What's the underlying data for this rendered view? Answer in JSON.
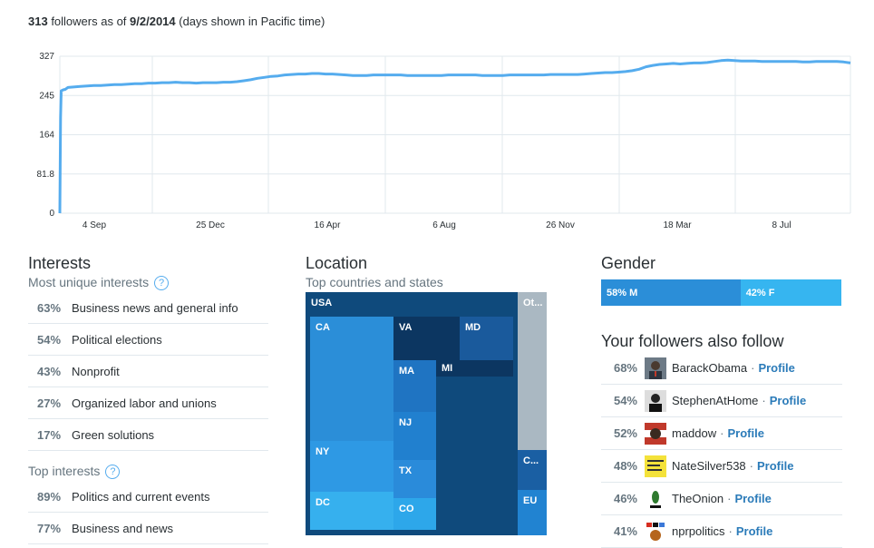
{
  "header": {
    "count": "313",
    "text1": " followers as of ",
    "date": "9/2/2014",
    "text2": " (days shown in Pacific time)"
  },
  "chart_data": {
    "type": "line",
    "y_ticks": [
      "0",
      "81.8",
      "164",
      "245",
      "327"
    ],
    "ylim": [
      0,
      327
    ],
    "x_ticks": [
      "4 Sep",
      "25 Dec",
      "16 Apr",
      "6 Aug",
      "26 Nov",
      "18 Mar",
      "8 Jul"
    ],
    "series": [
      {
        "color": "#55acee",
        "x": [
          0,
          0.5,
          1,
          2,
          5,
          8,
          10,
          12,
          20,
          30,
          40,
          50,
          60,
          70,
          80,
          90,
          100,
          110,
          120,
          130,
          140,
          150,
          160,
          170,
          180,
          190,
          200,
          210,
          220,
          230,
          240,
          250,
          260,
          270,
          280,
          290,
          300,
          310,
          320,
          330,
          340,
          350,
          360,
          370,
          380,
          390,
          400,
          410,
          420,
          430,
          440,
          450,
          460,
          470,
          480,
          490,
          500,
          510,
          520,
          530,
          540,
          550,
          560,
          570,
          580,
          590,
          600,
          610,
          620,
          630,
          640,
          650,
          660,
          670,
          680,
          690,
          700,
          710,
          720,
          730,
          740,
          750,
          760,
          770,
          780,
          790,
          800,
          810,
          820,
          830,
          840,
          850,
          860,
          870,
          880,
          890,
          900,
          910,
          920,
          930,
          940,
          950,
          960,
          970,
          980,
          990,
          1000,
          1010,
          1020,
          1030,
          1040,
          1050,
          1060,
          1070,
          1080,
          1090,
          1100,
          1110,
          1120,
          1130,
          1140,
          1150,
          1160
        ],
        "values": [
          0,
          100,
          200,
          255,
          257,
          258,
          260,
          262,
          263,
          264,
          265,
          266,
          266,
          267,
          268,
          268,
          269,
          270,
          270,
          271,
          271,
          272,
          272,
          273,
          272,
          272,
          271,
          272,
          272,
          272,
          273,
          273,
          274,
          276,
          278,
          281,
          283,
          285,
          286,
          288,
          289,
          290,
          290,
          291,
          291,
          290,
          290,
          289,
          288,
          287,
          287,
          287,
          288,
          288,
          288,
          288,
          288,
          287,
          287,
          287,
          287,
          287,
          287,
          288,
          288,
          288,
          288,
          288,
          287,
          287,
          287,
          287,
          288,
          288,
          288,
          288,
          288,
          288,
          289,
          289,
          289,
          289,
          289,
          290,
          291,
          292,
          293,
          293,
          294,
          295,
          297,
          300,
          305,
          308,
          310,
          311,
          312,
          311,
          312,
          313,
          313,
          314,
          316,
          318,
          319,
          318,
          317,
          317,
          317,
          316,
          316,
          316,
          316,
          316,
          316,
          315,
          315,
          316,
          316,
          316,
          316,
          315,
          313
        ]
      }
    ]
  },
  "interests": {
    "title": "Interests",
    "unique_label": "Most unique interests",
    "unique": [
      {
        "pct": "63%",
        "label": "Business news and general info"
      },
      {
        "pct": "54%",
        "label": "Political elections"
      },
      {
        "pct": "43%",
        "label": "Nonprofit"
      },
      {
        "pct": "27%",
        "label": "Organized labor and unions"
      },
      {
        "pct": "17%",
        "label": "Green solutions"
      }
    ],
    "top_label": "Top interests",
    "top": [
      {
        "pct": "89%",
        "label": "Politics and current events"
      },
      {
        "pct": "77%",
        "label": "Business and news"
      }
    ]
  },
  "location": {
    "title": "Location",
    "subtitle": "Top countries and states",
    "tiles": {
      "usa": "USA",
      "other": "Ot...",
      "ca": "CA",
      "va": "VA",
      "md": "MD",
      "ma": "MA",
      "mi": "MI",
      "nj": "NJ",
      "ny": "NY",
      "tx": "TX",
      "dc": "DC",
      "co": "CO",
      "c": "C...",
      "eu": "EU"
    }
  },
  "gender": {
    "title": "Gender",
    "male": "58% M",
    "female": "42% F",
    "male_share": 0.58
  },
  "also_follow": {
    "title": "Your followers also follow",
    "separator": "·",
    "profile_label": "Profile",
    "accounts": [
      {
        "pct": "68%",
        "name": "BarackObama"
      },
      {
        "pct": "54%",
        "name": "StephenAtHome"
      },
      {
        "pct": "52%",
        "name": "maddow"
      },
      {
        "pct": "48%",
        "name": "NateSilver538"
      },
      {
        "pct": "46%",
        "name": "TheOnion"
      },
      {
        "pct": "41%",
        "name": "nprpolitics"
      }
    ]
  }
}
